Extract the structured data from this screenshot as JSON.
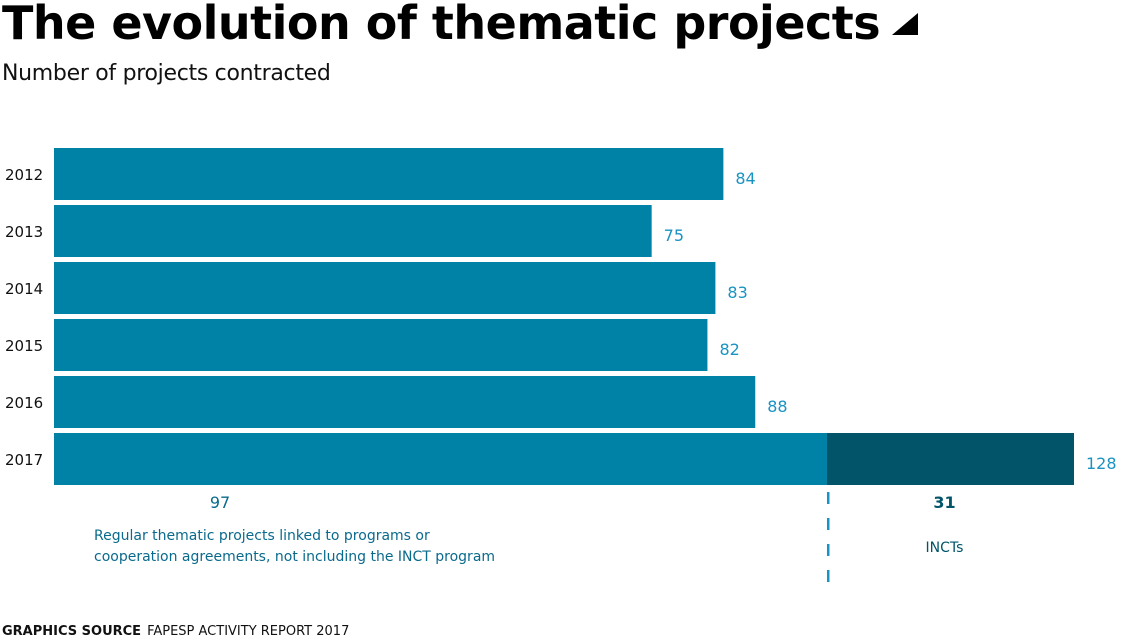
{
  "header": {
    "title": "The evolution of thematic projects",
    "subtitle": "Number of projects contracted"
  },
  "footer": {
    "source_label": "GRAPHICS SOURCE",
    "source_text": "FAPESP ACTIVITY REPORT 2017"
  },
  "colors": {
    "regular": "#0081a6",
    "inct": "#025569",
    "value_label": "#1a93c2",
    "annotation": "#0a6a8c",
    "dash": "#1a93c2"
  },
  "chart_data": {
    "type": "bar",
    "orientation": "horizontal",
    "stacked": true,
    "title": "The evolution of thematic projects",
    "subtitle": "Number of projects contracted",
    "categories": [
      "2012",
      "2013",
      "2014",
      "2015",
      "2016",
      "2017"
    ],
    "totals": [
      84,
      75,
      83,
      82,
      88,
      128
    ],
    "series": [
      {
        "name": "Regular thematic projects",
        "values": [
          84,
          75,
          83,
          82,
          88,
          97
        ]
      },
      {
        "name": "INCTs",
        "values": [
          0,
          0,
          0,
          0,
          0,
          31
        ]
      }
    ],
    "annotations": {
      "regular_value": "97",
      "regular_text_lines": [
        "Regular thematic projects linked to programs or",
        "cooperation agreements, not including the INCT program"
      ],
      "inct_value": "31",
      "inct_text": "INCTs"
    },
    "xlim": [
      0,
      128
    ],
    "grid": false,
    "legend": "none"
  }
}
